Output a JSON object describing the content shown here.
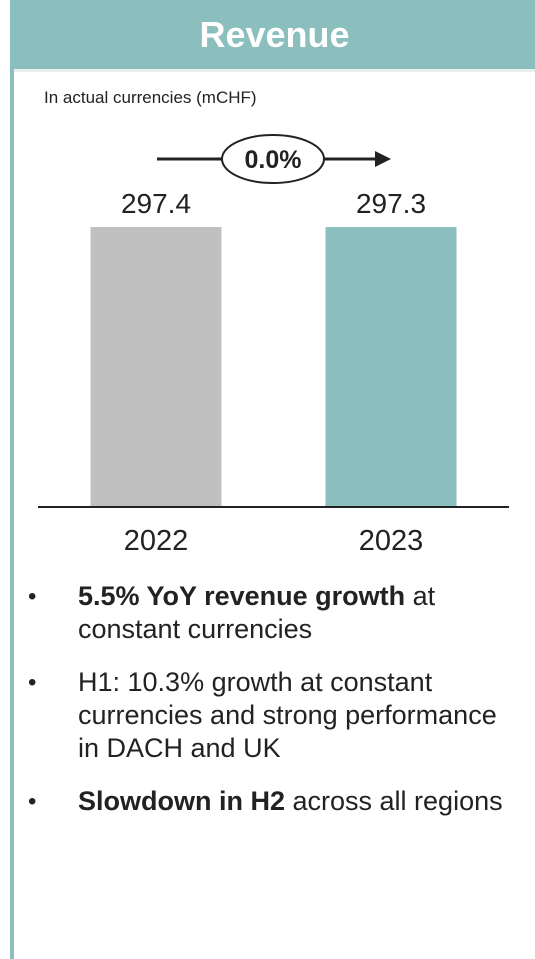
{
  "header": {
    "title": "Revenue"
  },
  "subtitle": "In actual currencies (mCHF)",
  "colors": {
    "accent": "#8bbfbd",
    "bar_2022": "#c0c0c0",
    "bar_2023": "#8bbfbd"
  },
  "growth_label": "0.0%",
  "chart_data": {
    "type": "bar",
    "title": "Revenue",
    "subtitle": "In actual currencies (mCHF)",
    "categories": [
      "2022",
      "2023"
    ],
    "values": [
      297.4,
      297.3
    ],
    "value_labels": [
      "297.4",
      "297.3"
    ],
    "ylim": [
      0,
      297.4
    ],
    "annotation": "0.0%",
    "grid": false
  },
  "bullets": [
    {
      "bold": "5.5% YoY revenue growth",
      "rest": " at constant currencies"
    },
    {
      "bold": "",
      "rest": "H1: 10.3% growth at constant currencies and strong performance in DACH and UK"
    },
    {
      "bold": "Slowdown in H2",
      "rest": " across all regions"
    }
  ]
}
